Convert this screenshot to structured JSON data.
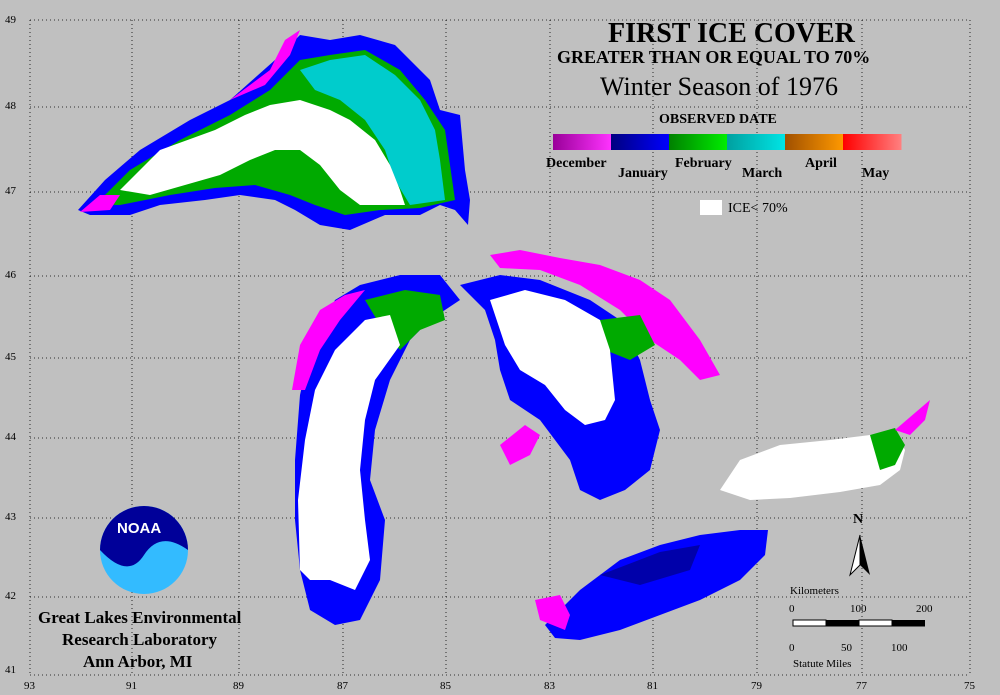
{
  "title": "FIRST ICE COVER",
  "subtitle": "GREATER THAN OR EQUAL TO 70%",
  "season": "Winter Season of 1976",
  "legend": {
    "heading": "OBSERVED DATE",
    "months": [
      "December",
      "January",
      "February",
      "March",
      "April",
      "May"
    ],
    "colors": [
      [
        "#990099",
        "#ff33ff"
      ],
      [
        "#000080",
        "#0000ff"
      ],
      [
        "#008000",
        "#00ee00"
      ],
      [
        "#00a0a0",
        "#00e5e5"
      ],
      [
        "#a05000",
        "#ff9900"
      ],
      [
        "#ff0000",
        "#ff8080"
      ]
    ],
    "ice_label": "ICE< 70%"
  },
  "latitudes": [
    "49",
    "48",
    "47",
    "46",
    "45",
    "44",
    "43",
    "42",
    "41"
  ],
  "longitudes": [
    "93",
    "91",
    "89",
    "87",
    "85",
    "83",
    "81",
    "79",
    "77",
    "75"
  ],
  "scale": {
    "km_label": "Kilometers",
    "km_ticks": [
      "0",
      "100",
      "200"
    ],
    "mi_ticks": [
      "0",
      "50",
      "100"
    ],
    "mi_label": "Statute Miles"
  },
  "north_label": "N",
  "logo_text": "NOAA",
  "agency": {
    "line1": "Great Lakes Environmental",
    "line2": "Research Laboratory",
    "line3": "Ann Arbor, MI"
  },
  "colors": {
    "background": "#c0c0c0",
    "ice_low": "#ffffff",
    "december": "#ff00ff",
    "january": "#0000ff",
    "february": "#00aa00",
    "march": "#00cccc"
  }
}
